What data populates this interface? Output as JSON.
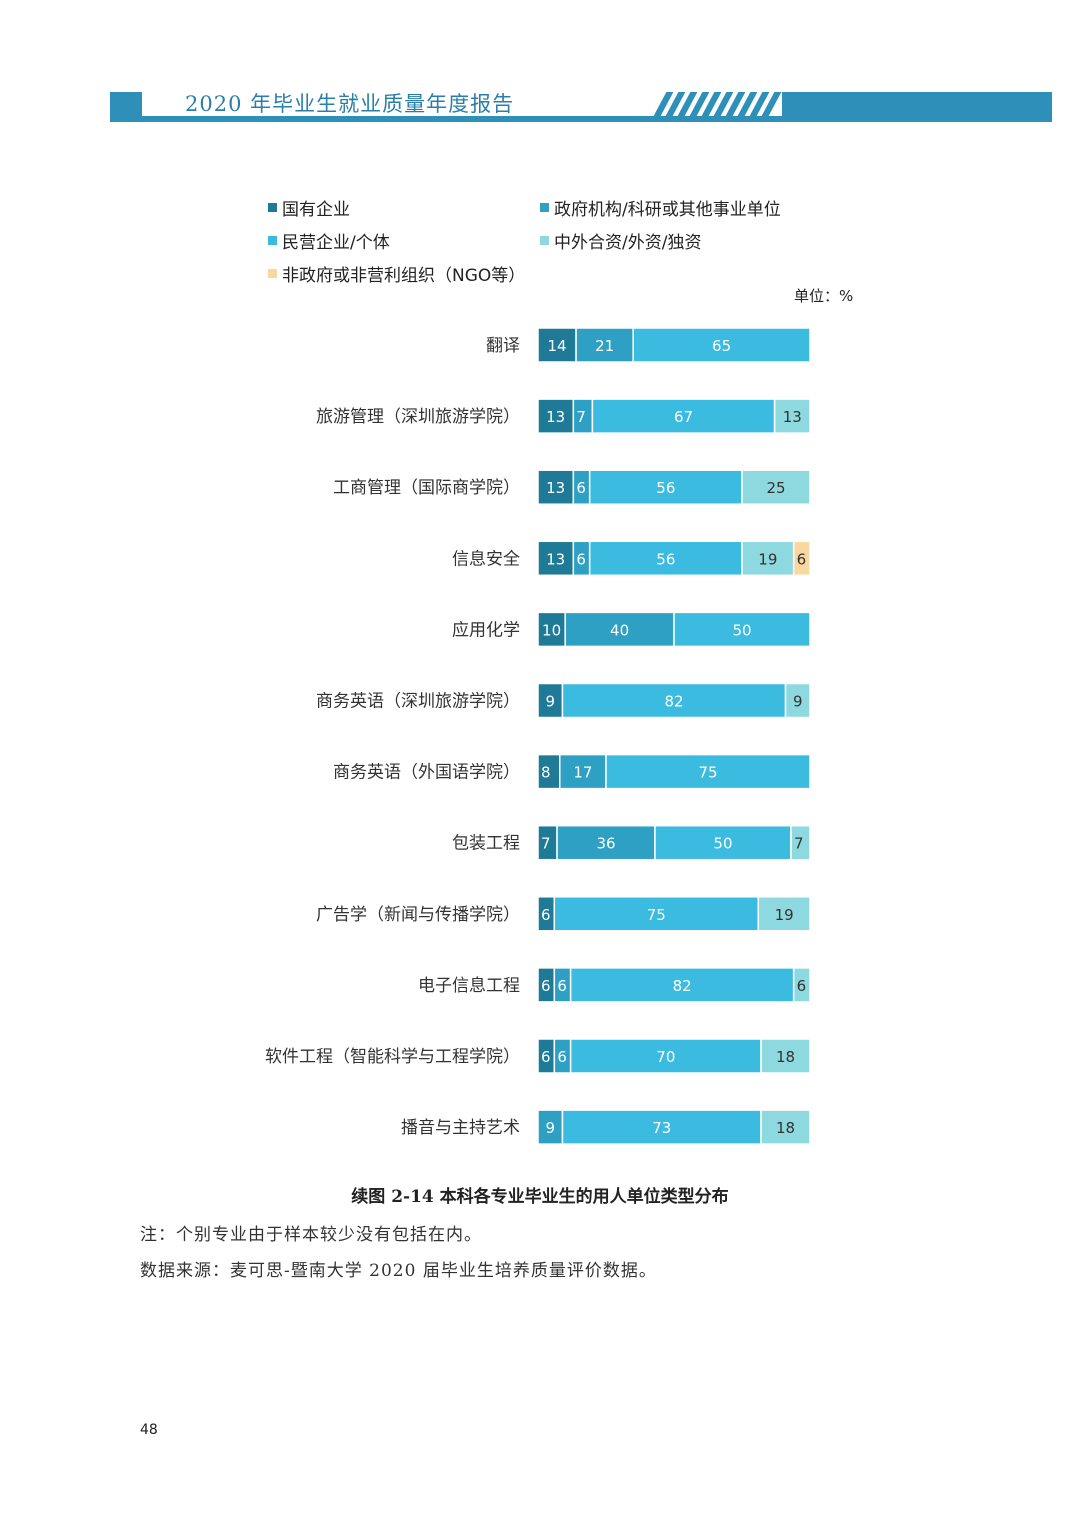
{
  "header": {
    "title": "2020 年毕业生就业质量年度报告"
  },
  "colors": {
    "header": "#2e8fb8",
    "series": [
      "#1e7a96",
      "#2ea0c4",
      "#3cbbe0",
      "#8ed8e0",
      "#f9d7a0"
    ],
    "label_dark": "#ffffff",
    "label_light": "#333333"
  },
  "unit_label": "单位：%",
  "chart_data": {
    "type": "bar",
    "orientation": "horizontal",
    "stacked": true,
    "title": "续图 2-14 本科各专业毕业生的用人单位类型分布",
    "legend_placement": "top",
    "categories": [
      "翻译",
      "旅游管理（深圳旅游学院）",
      "工商管理（国际商学院）",
      "信息安全",
      "应用化学",
      "商务英语（深圳旅游学院）",
      "商务英语（外国语学院）",
      "包装工程",
      "广告学（新闻与传播学院）",
      "电子信息工程",
      "软件工程（智能科学与工程学院）",
      "播音与主持艺术"
    ],
    "series": [
      {
        "name": "国有企业",
        "values": [
          14,
          13,
          13,
          13,
          10,
          9,
          8,
          7,
          6,
          6,
          6,
          0
        ]
      },
      {
        "name": "政府机构/科研或其他事业单位",
        "values": [
          21,
          7,
          6,
          6,
          40,
          0,
          17,
          36,
          0,
          6,
          6,
          9
        ]
      },
      {
        "name": "民营企业/个体",
        "values": [
          65,
          67,
          56,
          56,
          50,
          82,
          75,
          50,
          75,
          82,
          70,
          73
        ]
      },
      {
        "name": "中外合资/外资/独资",
        "values": [
          0,
          13,
          25,
          19,
          0,
          9,
          0,
          7,
          19,
          6,
          18,
          18
        ]
      },
      {
        "name": "非政府或非营利组织（NGO等）",
        "values": [
          0,
          0,
          0,
          6,
          0,
          0,
          0,
          0,
          0,
          0,
          0,
          0
        ]
      }
    ],
    "unit": "%",
    "xlim": [
      0,
      100
    ],
    "grid": false
  },
  "notes": {
    "note1": "注：个别专业由于样本较少没有包括在内。",
    "note2": "数据来源：麦可思-暨南大学 2020 届毕业生培养质量评价数据。"
  },
  "page_number": "48"
}
